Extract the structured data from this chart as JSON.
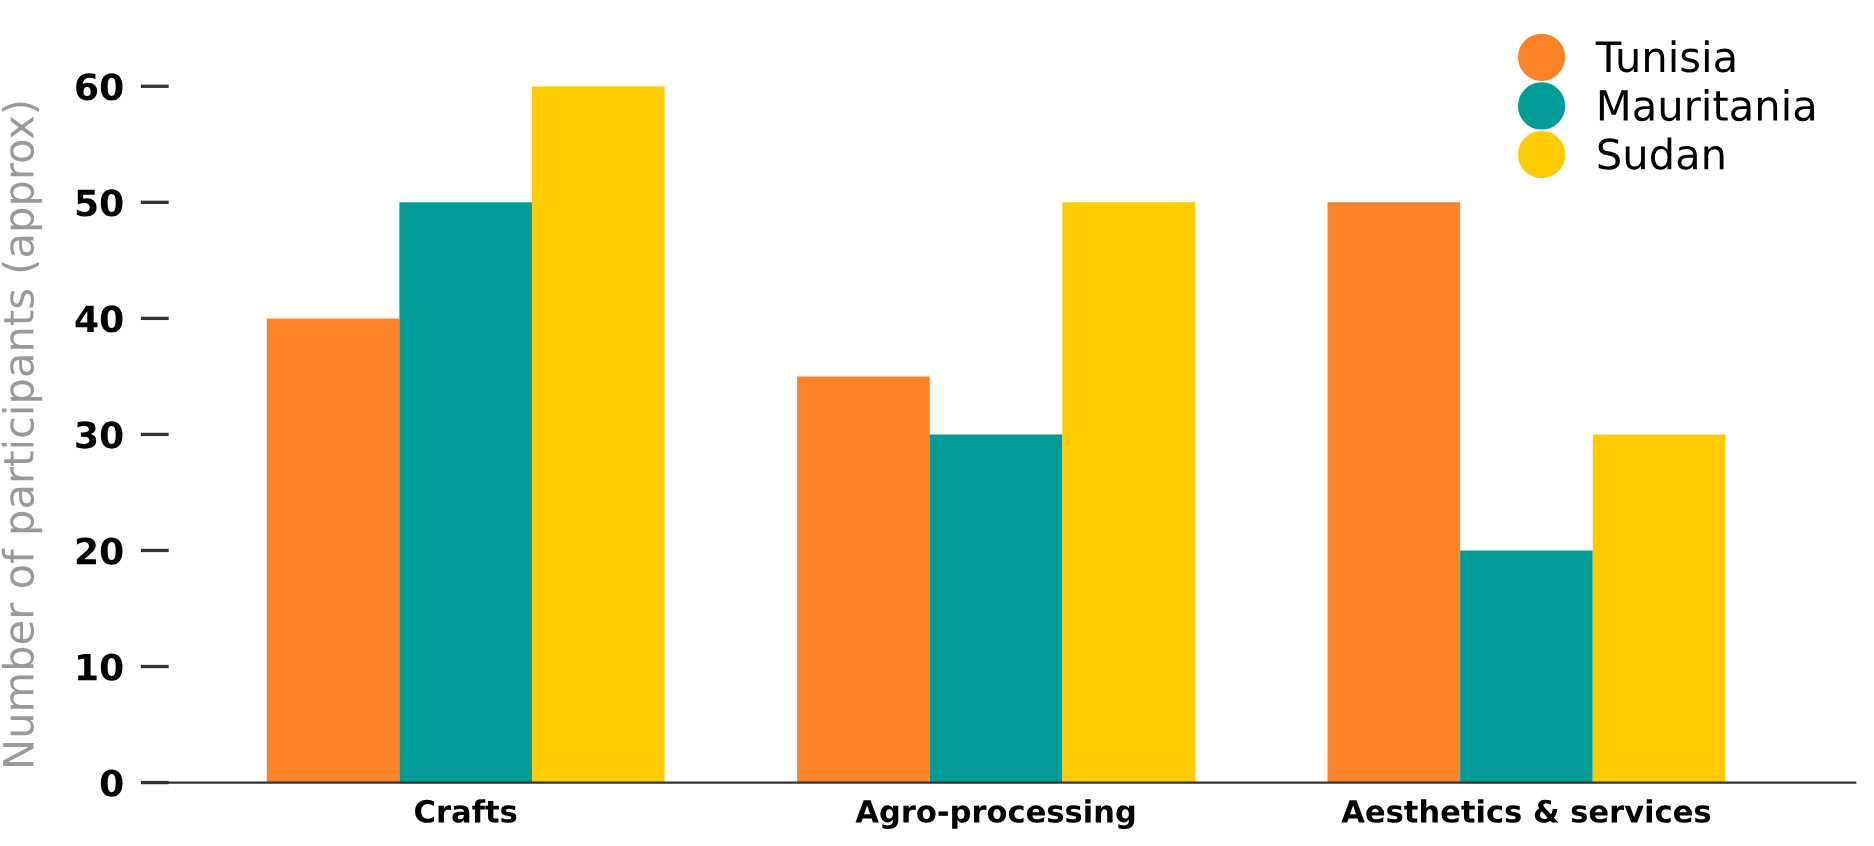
{
  "chart_data": {
    "type": "bar",
    "ylabel": "Number of participants (approx)",
    "categories": [
      "Crafts",
      "Agro-processing",
      "Aesthetics & services"
    ],
    "series": [
      {
        "name": "Tunisia",
        "color": "#fd8328",
        "values": [
          40,
          35,
          50
        ]
      },
      {
        "name": "Mauritania",
        "color": "#019b98",
        "values": [
          50,
          30,
          20
        ]
      },
      {
        "name": "Sudan",
        "color": "#fecb00",
        "values": [
          60,
          50,
          30
        ]
      }
    ],
    "ylim": [
      0,
      60
    ],
    "yticks": [
      0,
      10,
      20,
      30,
      40,
      50,
      60
    ],
    "grid": false,
    "legend": "top right",
    "marker": "circle"
  }
}
